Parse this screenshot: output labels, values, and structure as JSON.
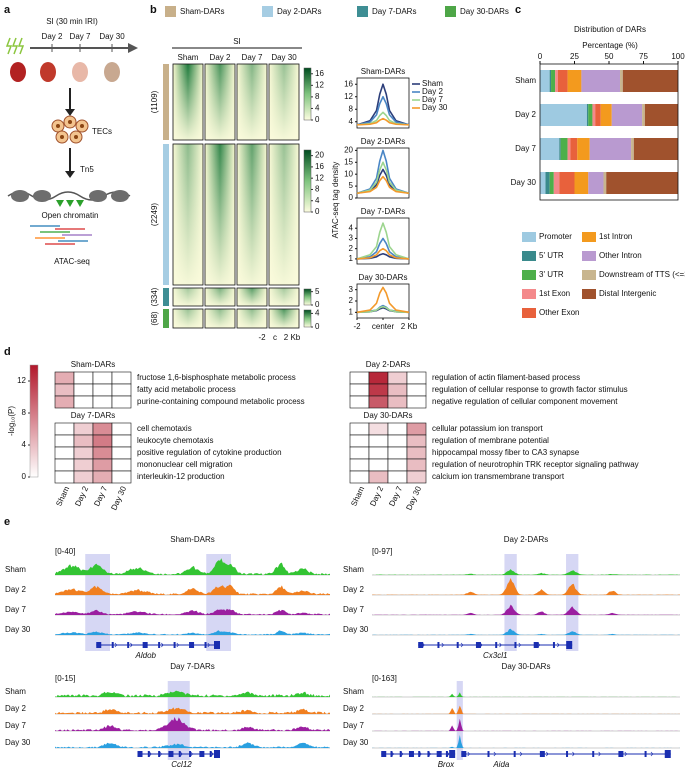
{
  "panel_labels": [
    "a",
    "b",
    "c",
    "d",
    "e"
  ],
  "panel_a": {
    "title": "SI (30 min IRI)",
    "timepoints": [
      "Day 2",
      "Day 7",
      "Day 30"
    ],
    "cells": "TECs",
    "enzyme": "Tn5",
    "chromatin": "Open chromatin",
    "assay": "ATAC-seq"
  },
  "panel_b": {
    "legend": [
      {
        "name": "Sham-DARs",
        "color": "#c8b08a"
      },
      {
        "name": "Day 2-DARs",
        "color": "#a6cde3"
      },
      {
        "name": "Day 7-DARs",
        "color": "#3e8e94"
      },
      {
        "name": "Day 30-DARs",
        "color": "#4ea647"
      }
    ],
    "heatmap": {
      "title": "SI",
      "columns": [
        "Sham",
        "Day 2",
        "Day 7",
        "Day 30"
      ],
      "groups": [
        {
          "label": "(1109)",
          "ticks": [
            0,
            4,
            8,
            12,
            16
          ],
          "lim": [
            0,
            18
          ]
        },
        {
          "label": "(2249)",
          "ticks": [
            0,
            4,
            8,
            12,
            16,
            20
          ],
          "lim": [
            0,
            22
          ]
        },
        {
          "label": "(334)",
          "ticks": [
            0,
            5
          ],
          "lim": [
            0,
            6
          ]
        },
        {
          "label": "(68)",
          "ticks": [
            0,
            4
          ],
          "lim": [
            0,
            5
          ]
        }
      ],
      "xticks": [
        "-2",
        "c",
        "2 Kb"
      ]
    },
    "profile_ylabel": "ATAC-seq tag density"
  },
  "chart_data": [
    {
      "type": "line",
      "title": "Sham-DARs",
      "x": [
        -2,
        -1,
        -0.5,
        -0.25,
        0,
        0.25,
        0.5,
        1,
        2
      ],
      "xlim": [
        -2,
        2
      ],
      "ylim": [
        2,
        18
      ],
      "yticks": [
        4,
        8,
        12,
        16
      ],
      "series": [
        {
          "name": "Sham",
          "color": "#2c3e7a",
          "values": [
            3,
            4.3,
            7.6,
            12.8,
            16,
            12.8,
            7.6,
            4.3,
            3
          ]
        },
        {
          "name": "Day 2",
          "color": "#4a86c5",
          "values": [
            3,
            3.9,
            6.2,
            9.8,
            12,
            9.8,
            6.2,
            3.9,
            3
          ]
        },
        {
          "name": "Day 7",
          "color": "#9dd58f",
          "values": [
            3,
            3.4,
            4.4,
            6,
            7,
            6,
            4.4,
            3.4,
            3
          ]
        },
        {
          "name": "Day 30",
          "color": "#f39a2c",
          "values": [
            3,
            3.2,
            3.7,
            4.5,
            5,
            4.5,
            3.7,
            3.2,
            3
          ]
        }
      ]
    },
    {
      "type": "line",
      "title": "Day 2-DARs",
      "x": [
        -2,
        -1,
        -0.5,
        -0.25,
        0,
        0.25,
        0.5,
        1,
        2
      ],
      "xlim": [
        -2,
        2
      ],
      "ylim": [
        0,
        21
      ],
      "yticks": [
        0,
        5,
        10,
        15,
        20
      ],
      "series": [
        {
          "name": "Sham",
          "color": "#2c3e7a",
          "values": [
            2,
            3,
            5.5,
            9.5,
            12,
            9.5,
            5.5,
            3,
            2
          ]
        },
        {
          "name": "Day 2",
          "color": "#4a86c5",
          "values": [
            2,
            3.8,
            8.3,
            15.5,
            20,
            15.5,
            8.3,
            3.8,
            2
          ]
        },
        {
          "name": "Day 7",
          "color": "#9dd58f",
          "values": [
            2,
            3.3,
            6.6,
            11.8,
            15,
            11.8,
            6.6,
            3.3,
            2
          ]
        },
        {
          "name": "Day 30",
          "color": "#f39a2c",
          "values": [
            2,
            2.7,
            4.5,
            7.3,
            9,
            7.3,
            4.5,
            2.7,
            2
          ]
        }
      ]
    },
    {
      "type": "line",
      "title": "Day 7-DARs",
      "x": [
        -2,
        -1,
        -0.5,
        -0.25,
        0,
        0.25,
        0.5,
        1,
        2
      ],
      "xlim": [
        -2,
        2
      ],
      "ylim": [
        0.5,
        5
      ],
      "yticks": [
        1,
        2,
        3,
        4
      ],
      "series": [
        {
          "name": "Sham",
          "color": "#2c3e7a",
          "values": [
            1,
            1.05,
            1.2,
            1.4,
            1.5,
            1.4,
            1.2,
            1.05,
            1
          ]
        },
        {
          "name": "Day 2",
          "color": "#4a86c5",
          "values": [
            1,
            1.2,
            1.7,
            2.5,
            3,
            2.5,
            1.7,
            1.2,
            1
          ]
        },
        {
          "name": "Day 7",
          "color": "#9dd58f",
          "values": [
            1,
            1.4,
            2.2,
            3.6,
            4.5,
            3.6,
            2.2,
            1.4,
            1
          ]
        },
        {
          "name": "Day 30",
          "color": "#f39a2c",
          "values": [
            1,
            1.1,
            1.4,
            1.8,
            2,
            1.8,
            1.4,
            1.1,
            1
          ]
        }
      ]
    },
    {
      "type": "line",
      "title": "Day 30-DARs",
      "x": [
        -2,
        -1,
        -0.5,
        -0.25,
        0,
        0.25,
        0.5,
        1,
        2
      ],
      "xlim": [
        -2,
        2
      ],
      "ylim": [
        0.5,
        3.5
      ],
      "yticks": [
        1,
        2,
        3
      ],
      "xticks": [
        -2,
        {
          "value": 0,
          "label": "center"
        },
        {
          "value": 2,
          "label": "2 Kb"
        }
      ],
      "series": [
        {
          "name": "Sham",
          "color": "#2c3e7a",
          "values": [
            1,
            1.05,
            1.15,
            1.3,
            1.4,
            1.3,
            1.15,
            1.05,
            1
          ]
        },
        {
          "name": "Day 2",
          "color": "#4a86c5",
          "values": [
            1,
            1.1,
            1.2,
            1.45,
            1.6,
            1.45,
            1.2,
            1.1,
            1
          ]
        },
        {
          "name": "Day 7",
          "color": "#9dd58f",
          "values": [
            1,
            1.05,
            1.2,
            1.4,
            1.5,
            1.4,
            1.2,
            1.05,
            1
          ]
        },
        {
          "name": "Day 30",
          "color": "#f39a2c",
          "values": [
            1,
            1.2,
            1.8,
            2.7,
            3.2,
            2.7,
            1.8,
            1.2,
            1
          ]
        }
      ]
    },
    {
      "type": "bar",
      "orientation": "horizontal",
      "stacked": true,
      "title": "Distribution of DARs",
      "xlabel": "Percentage (%)",
      "categories": [
        "Sham",
        "Day 2",
        "Day 7",
        "Day 30"
      ],
      "xlim": [
        0,
        100
      ],
      "xticks": [
        0,
        25,
        50,
        75,
        100
      ],
      "series": [
        {
          "name": "Promoter",
          "color": "#9ecae1",
          "values": [
            7,
            34,
            14,
            4
          ]
        },
        {
          "name": "5' UTR",
          "color": "#3a8a8c",
          "values": [
            1,
            1,
            1,
            3
          ]
        },
        {
          "name": "3' UTR",
          "color": "#4daf4a",
          "values": [
            3,
            3,
            5,
            3
          ]
        },
        {
          "name": "1st Exon",
          "color": "#f4898b",
          "values": [
            2,
            2,
            2,
            4
          ]
        },
        {
          "name": "Other Exon",
          "color": "#e8613c",
          "values": [
            7,
            4,
            5,
            11
          ]
        },
        {
          "name": "1st Intron",
          "color": "#f39a1e",
          "values": [
            10,
            8,
            9,
            10
          ]
        },
        {
          "name": "Other Intron",
          "color": "#b99ad0",
          "values": [
            28,
            22,
            30,
            11
          ]
        },
        {
          "name": "Downstream of TTS (<=300)",
          "color": "#c8b58e",
          "values": [
            2,
            2,
            2,
            2
          ]
        },
        {
          "name": "Distal Intergenic",
          "color": "#a0522d",
          "values": [
            40,
            24,
            32,
            52
          ]
        }
      ]
    },
    {
      "type": "heatmap",
      "title": "Sham-DARs",
      "rows": [
        "fructose 1,6-bisphosphate metabolic process",
        "fatty acid metabolic process",
        "purine-containing compound metabolic process"
      ],
      "values": [
        [
          5,
          0,
          0,
          0
        ],
        [
          4,
          0,
          0,
          0
        ],
        [
          5,
          0,
          0,
          0
        ]
      ]
    },
    {
      "type": "heatmap",
      "title": "Day 2-DARs",
      "rows": [
        "regulation of actin filament-based process",
        "regulation of cellular response to growth factor stimulus",
        "negative regulation of cellular component movement"
      ],
      "values": [
        [
          0,
          13,
          3,
          0
        ],
        [
          0,
          12,
          4,
          0
        ],
        [
          0,
          10,
          4,
          0
        ]
      ]
    },
    {
      "type": "heatmap",
      "title": "Day 7-DARs",
      "rows": [
        "cell chemotaxis",
        "leukocyte chemotaxis",
        "positive regulation of cytokine production",
        "mononuclear cell migration",
        "interleukin-12 production"
      ],
      "columns": [
        "Sham",
        "Day 2",
        "Day 7",
        "Day 30"
      ],
      "values": [
        [
          0,
          3,
          7,
          0
        ],
        [
          0,
          4,
          8,
          0
        ],
        [
          0,
          3,
          7,
          0
        ],
        [
          0,
          3,
          6,
          0
        ],
        [
          0,
          3,
          5,
          0
        ]
      ]
    },
    {
      "type": "heatmap",
      "title": "Day 30-DARs",
      "rows": [
        "cellular potassium ion transport",
        "regulation of membrane potential",
        "hippocampal mossy fiber to CA3 synapse",
        "regulation of neurotrophin TRK receptor signaling pathway",
        "calcium ion transmembrane transport"
      ],
      "columns": [
        "Sham",
        "Day 2",
        "Day 7",
        "Day 30"
      ],
      "values": [
        [
          0,
          2,
          0,
          6
        ],
        [
          0,
          0,
          0,
          4
        ],
        [
          0,
          0,
          0,
          4
        ],
        [
          0,
          0,
          0,
          4
        ],
        [
          0,
          4,
          0,
          3
        ]
      ]
    }
  ],
  "panel_d": {
    "colorbar": {
      "label": "-log₁₀(P)",
      "ticks": [
        0,
        4,
        8,
        12
      ],
      "lim": [
        0,
        14
      ],
      "color": "#b2182b"
    }
  },
  "panel_e": {
    "tracks": [
      {
        "title": "Sham-DARs",
        "range": "[0-40]",
        "rows": [
          "Sham",
          "Day 2",
          "Day 7",
          "Day 30"
        ],
        "genes": [
          "Aldob"
        ]
      },
      {
        "title": "Day 2-DARs",
        "range": "[0-97]",
        "rows": [
          "Sham",
          "Day 2",
          "Day 7",
          "Day 30"
        ],
        "genes": [
          "Cx3cl1"
        ]
      },
      {
        "title": "Day 7-DARs",
        "range": "[0-15]",
        "rows": [
          "Sham",
          "Day 2",
          "Day 7",
          "Day 30"
        ],
        "genes": [
          "Ccl12"
        ]
      },
      {
        "title": "Day 30-DARs",
        "range": "[0-163]",
        "rows": [
          "Sham",
          "Day 2",
          "Day 7",
          "Day 30"
        ],
        "genes": [
          "Brox",
          "Aida"
        ]
      }
    ]
  }
}
